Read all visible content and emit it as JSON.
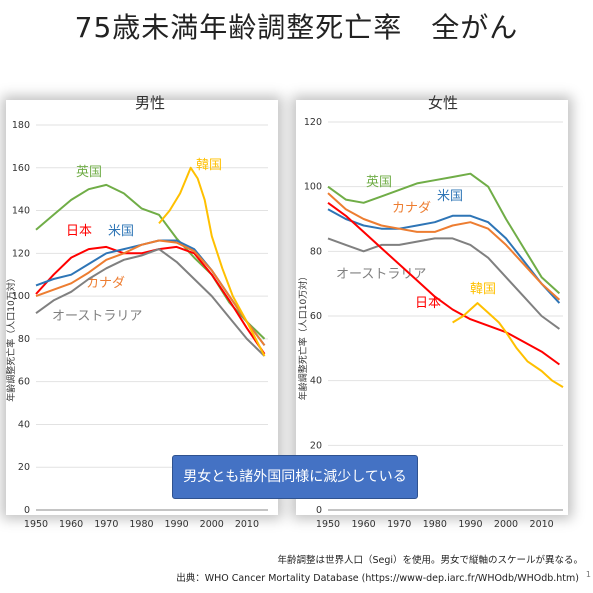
{
  "slide_title": "75歳未満年齢調整死亡率　全がん",
  "callout": "男女とも諸外国同様に減少している",
  "note_line1": "年齢調整は世界人口（Segi）を使用。男女で縦軸のスケールが異なる。",
  "note_line2": "出典：WHO Cancer Mortality Database (https://www-dep.iarc.fr/WHOdb/WHOdb.htm)",
  "page_number": "1",
  "chart_data": [
    {
      "type": "line",
      "title": "男性",
      "ylabel": "年齢調整死亡率（人口10万対）",
      "xlim": [
        1950,
        2016
      ],
      "ylim": [
        0,
        180
      ],
      "xticks": [
        1950,
        1960,
        1970,
        1980,
        1990,
        2000,
        2010
      ],
      "yticks": [
        0,
        20,
        40,
        60,
        80,
        100,
        120,
        140,
        160,
        180
      ],
      "series": [
        {
          "name": "英国",
          "color": "#70ad47",
          "points": [
            [
              1950,
              131
            ],
            [
              1955,
              138
            ],
            [
              1960,
              145
            ],
            [
              1965,
              150
            ],
            [
              1970,
              152
            ],
            [
              1975,
              148
            ],
            [
              1980,
              141
            ],
            [
              1985,
              138
            ],
            [
              1990,
              127
            ],
            [
              1995,
              118
            ],
            [
              2000,
              110
            ],
            [
              2005,
              97
            ],
            [
              2010,
              88
            ],
            [
              2015,
              80
            ]
          ]
        },
        {
          "name": "日本",
          "color": "#ff0000",
          "points": [
            [
              1950,
              101
            ],
            [
              1955,
              110
            ],
            [
              1960,
              118
            ],
            [
              1965,
              122
            ],
            [
              1970,
              123
            ],
            [
              1975,
              120
            ],
            [
              1980,
              120
            ],
            [
              1985,
              122
            ],
            [
              1990,
              123
            ],
            [
              1995,
              120
            ],
            [
              2000,
              110
            ],
            [
              2005,
              98
            ],
            [
              2010,
              85
            ],
            [
              2015,
              73
            ]
          ]
        },
        {
          "name": "米国",
          "color": "#2e75b6",
          "points": [
            [
              1950,
              105
            ],
            [
              1955,
              108
            ],
            [
              1960,
              110
            ],
            [
              1965,
              115
            ],
            [
              1970,
              120
            ],
            [
              1975,
              122
            ],
            [
              1980,
              124
            ],
            [
              1985,
              126
            ],
            [
              1990,
              126
            ],
            [
              1995,
              122
            ],
            [
              2000,
              112
            ],
            [
              2005,
              100
            ],
            [
              2010,
              88
            ],
            [
              2015,
              77
            ]
          ]
        },
        {
          "name": "カナダ",
          "color": "#ed7d31",
          "points": [
            [
              1950,
              100
            ],
            [
              1955,
              103
            ],
            [
              1960,
              106
            ],
            [
              1965,
              111
            ],
            [
              1970,
              117
            ],
            [
              1975,
              120
            ],
            [
              1980,
              124
            ],
            [
              1985,
              126
            ],
            [
              1990,
              125
            ],
            [
              1995,
              121
            ],
            [
              2000,
              112
            ],
            [
              2005,
              100
            ],
            [
              2010,
              88
            ],
            [
              2015,
              77
            ]
          ]
        },
        {
          "name": "オーストラリア",
          "color": "#808080",
          "points": [
            [
              1950,
              92
            ],
            [
              1955,
              98
            ],
            [
              1960,
              102
            ],
            [
              1965,
              108
            ],
            [
              1970,
              113
            ],
            [
              1975,
              117
            ],
            [
              1980,
              119
            ],
            [
              1985,
              122
            ],
            [
              1990,
              116
            ],
            [
              1995,
              108
            ],
            [
              2000,
              100
            ],
            [
              2005,
              90
            ],
            [
              2010,
              80
            ],
            [
              2015,
              72
            ]
          ]
        },
        {
          "name": "韓国",
          "color": "#ffc000",
          "points": [
            [
              1985,
              134
            ],
            [
              1988,
              140
            ],
            [
              1991,
              148
            ],
            [
              1993,
              156
            ],
            [
              1994,
              160
            ],
            [
              1996,
              155
            ],
            [
              1998,
              145
            ],
            [
              2000,
              128
            ],
            [
              2003,
              113
            ],
            [
              2006,
              100
            ],
            [
              2010,
              88
            ],
            [
              2015,
              72
            ]
          ]
        }
      ]
    },
    {
      "type": "line",
      "title": "女性",
      "ylabel": "年齢調整死亡率（人口10万対）",
      "xlim": [
        1950,
        2016
      ],
      "ylim": [
        0,
        120
      ],
      "xticks": [
        1950,
        1960,
        1970,
        1980,
        1990,
        2000,
        2010
      ],
      "yticks": [
        0,
        20,
        40,
        60,
        80,
        100,
        120
      ],
      "series": [
        {
          "name": "英国",
          "color": "#70ad47",
          "points": [
            [
              1950,
              100
            ],
            [
              1955,
              96
            ],
            [
              1960,
              95
            ],
            [
              1965,
              97
            ],
            [
              1970,
              99
            ],
            [
              1975,
              101
            ],
            [
              1980,
              102
            ],
            [
              1985,
              103
            ],
            [
              1990,
              104
            ],
            [
              1995,
              100
            ],
            [
              2000,
              90
            ],
            [
              2005,
              81
            ],
            [
              2010,
              72
            ],
            [
              2015,
              67
            ]
          ]
        },
        {
          "name": "米国",
          "color": "#2e75b6",
          "points": [
            [
              1950,
              93
            ],
            [
              1955,
              90
            ],
            [
              1960,
              88
            ],
            [
              1965,
              87
            ],
            [
              1970,
              87
            ],
            [
              1975,
              88
            ],
            [
              1980,
              89
            ],
            [
              1985,
              91
            ],
            [
              1990,
              91
            ],
            [
              1995,
              89
            ],
            [
              2000,
              84
            ],
            [
              2005,
              77
            ],
            [
              2010,
              70
            ],
            [
              2015,
              64
            ]
          ]
        },
        {
          "name": "カナダ",
          "color": "#ed7d31",
          "points": [
            [
              1950,
              98
            ],
            [
              1955,
              93
            ],
            [
              1960,
              90
            ],
            [
              1965,
              88
            ],
            [
              1970,
              87
            ],
            [
              1975,
              86
            ],
            [
              1980,
              86
            ],
            [
              1985,
              88
            ],
            [
              1990,
              89
            ],
            [
              1995,
              87
            ],
            [
              2000,
              82
            ],
            [
              2005,
              76
            ],
            [
              2010,
              70
            ],
            [
              2015,
              65
            ]
          ]
        },
        {
          "name": "オーストラリア",
          "color": "#808080",
          "points": [
            [
              1950,
              84
            ],
            [
              1955,
              82
            ],
            [
              1960,
              80
            ],
            [
              1965,
              82
            ],
            [
              1970,
              82
            ],
            [
              1975,
              83
            ],
            [
              1980,
              84
            ],
            [
              1985,
              84
            ],
            [
              1990,
              82
            ],
            [
              1995,
              78
            ],
            [
              2000,
              72
            ],
            [
              2005,
              66
            ],
            [
              2010,
              60
            ],
            [
              2015,
              56
            ]
          ]
        },
        {
          "name": "日本",
          "color": "#ff0000",
          "points": [
            [
              1950,
              95
            ],
            [
              1955,
              91
            ],
            [
              1960,
              86
            ],
            [
              1965,
              81
            ],
            [
              1970,
              76
            ],
            [
              1975,
              71
            ],
            [
              1980,
              66
            ],
            [
              1985,
              62
            ],
            [
              1990,
              59
            ],
            [
              1995,
              57
            ],
            [
              2000,
              55
            ],
            [
              2005,
              52
            ],
            [
              2010,
              49
            ],
            [
              2015,
              45
            ]
          ]
        },
        {
          "name": "韓国",
          "color": "#ffc000",
          "points": [
            [
              1985,
              58
            ],
            [
              1988,
              60
            ],
            [
              1990,
              62
            ],
            [
              1992,
              64
            ],
            [
              1995,
              61
            ],
            [
              1998,
              58
            ],
            [
              2000,
              55
            ],
            [
              2003,
              50
            ],
            [
              2006,
              46
            ],
            [
              2010,
              43
            ],
            [
              2013,
              40
            ],
            [
              2016,
              38
            ]
          ]
        }
      ]
    }
  ],
  "series_label_positions_note": ""
}
